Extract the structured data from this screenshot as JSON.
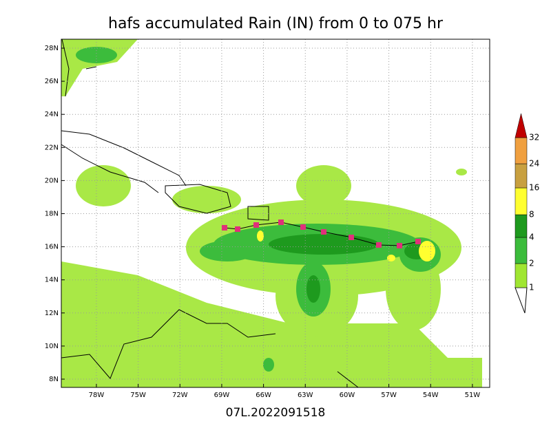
{
  "title": "hafs accumulated Rain (IN) from 0 to 075 hr",
  "subtitle": "07L.2022091518",
  "map": {
    "lon_ticks": [
      {
        "value": -78,
        "label": "78W"
      },
      {
        "value": -75,
        "label": "75W"
      },
      {
        "value": -72,
        "label": "72W"
      },
      {
        "value": -69,
        "label": "69W"
      },
      {
        "value": -66,
        "label": "66W"
      },
      {
        "value": -63,
        "label": "63W"
      },
      {
        "value": -60,
        "label": "60W"
      },
      {
        "value": -57,
        "label": "57W"
      },
      {
        "value": -54,
        "label": "54W"
      },
      {
        "value": -51,
        "label": "51W"
      }
    ],
    "lat_ticks": [
      {
        "value": 8,
        "label": "8N"
      },
      {
        "value": 10,
        "label": "10N"
      },
      {
        "value": 12,
        "label": "12N"
      },
      {
        "value": 14,
        "label": "14N"
      },
      {
        "value": 16,
        "label": "16N"
      },
      {
        "value": 18,
        "label": "18N"
      },
      {
        "value": 20,
        "label": "20N"
      },
      {
        "value": 22,
        "label": "22N"
      },
      {
        "value": 24,
        "label": "24N"
      },
      {
        "value": 26,
        "label": "26N"
      },
      {
        "value": 28,
        "label": "28N"
      }
    ]
  },
  "colorbar": {
    "levels": [
      1,
      2,
      4,
      8,
      16,
      24,
      32
    ],
    "colors": [
      "#a0e632",
      "#3cbc3c",
      "#1e9a1e",
      "#ffff30",
      "#c8a040",
      "#f0a040",
      "#c00000"
    ]
  }
}
